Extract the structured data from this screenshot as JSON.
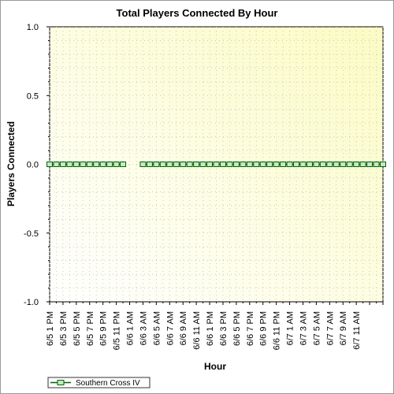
{
  "chart_data": {
    "type": "line",
    "title": "Total Players Connected By Hour",
    "xlabel": "Hour",
    "ylabel": "Players Connected",
    "ylim": [
      -1.0,
      1.0
    ],
    "yticks": [
      "1.0",
      "0.5",
      "0.0",
      "-0.5",
      "-1.0"
    ],
    "ytick_values": [
      1.0,
      0.5,
      0.0,
      -0.5,
      -1.0
    ],
    "x_tick_labels": [
      "6/5 1 PM",
      "6/5 3 PM",
      "6/5 5 PM",
      "6/5 7 PM",
      "6/5 9 PM",
      "6/5 11 PM",
      "6/6 1 AM",
      "6/6 3 AM",
      "6/6 5 AM",
      "6/6 7 AM",
      "6/6 9 AM",
      "6/6 11 AM",
      "6/6 1 PM",
      "6/6 3 PM",
      "6/6 5 PM",
      "6/6 7 PM",
      "6/6 9 PM",
      "6/6 11 PM",
      "6/7 1 AM",
      "6/7 3 AM",
      "6/7 5 AM",
      "6/7 7 AM",
      "6/7 9 AM",
      "6/7 11 AM"
    ],
    "x_range_hours": [
      0,
      50
    ],
    "grid": true,
    "legend_position": "bottom-left",
    "series": [
      {
        "name": "Southern Cross IV",
        "color": "#006400",
        "marker_fill": "#c8e6c8",
        "segments": [
          {
            "x_hours": [
              0,
              1,
              2,
              3,
              4,
              5,
              6,
              7,
              8,
              9,
              10,
              11
            ],
            "values": [
              0,
              0,
              0,
              0,
              0,
              0,
              0,
              0,
              0,
              0,
              0,
              0
            ]
          },
          {
            "x_hours": [
              14,
              15,
              16,
              17,
              18,
              19,
              20,
              21,
              22,
              23,
              24,
              25,
              26,
              27,
              28,
              29,
              30,
              31,
              32,
              33,
              34,
              35,
              36,
              37,
              38,
              39,
              40,
              41,
              42,
              43,
              44,
              45,
              46,
              47,
              48,
              49,
              50
            ],
            "values": [
              0,
              0,
              0,
              0,
              0,
              0,
              0,
              0,
              0,
              0,
              0,
              0,
              0,
              0,
              0,
              0,
              0,
              0,
              0,
              0,
              0,
              0,
              0,
              0,
              0,
              0,
              0,
              0,
              0,
              0,
              0,
              0,
              0,
              0,
              0,
              0,
              0
            ]
          }
        ]
      }
    ]
  }
}
